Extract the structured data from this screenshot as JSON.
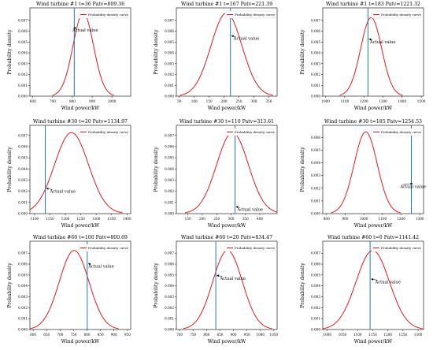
{
  "figure": {
    "colors": {
      "curve": "#e31a1c",
      "actual": "#1f77b4",
      "axis": "#000000"
    }
  },
  "chart_data": [
    {
      "type": "line",
      "title": "Wind turbine #1  t=36 Patv=809.36",
      "xlabel": "Wind power/kW",
      "ylabel": "Probability density",
      "legend": "Probability density curve",
      "legend_position": "top-right",
      "annotation": "Actual value",
      "actual": 809.36,
      "mu": 855,
      "sigma": 52,
      "xlim": [
        585,
        1095
      ],
      "ylim": [
        0,
        0.00815
      ],
      "xticks": [
        600,
        700,
        800,
        900,
        1000
      ],
      "xtick_labels": [
        "600",
        "700",
        "800",
        "900",
        "1000"
      ],
      "yticks": [
        0,
        0.001,
        0.002,
        0.003,
        0.004,
        0.005,
        0.006,
        0.007
      ],
      "ytick_labels": [
        "0.000",
        "0.001",
        "0.002",
        "0.003",
        "0.004",
        "0.005",
        "0.006",
        "0.007"
      ],
      "label_at": 800,
      "label_dy": 0.0012
    },
    {
      "type": "line",
      "title": "Wind turbine #1  t=167 Patv=221.39",
      "xlabel": "Wind power/kW",
      "ylabel": "Probability density",
      "legend": "Probability density curve",
      "legend_position": "top-right",
      "annotation": "Actual value",
      "actual": 221.39,
      "mu": 208,
      "sigma": 52,
      "xlim": [
        40,
        378
      ],
      "ylim": [
        0,
        0.00815
      ],
      "xticks": [
        50,
        100,
        150,
        200,
        250,
        300,
        350
      ],
      "xtick_labels": [
        "50",
        "100",
        "150",
        "200",
        "250",
        "300",
        "350"
      ],
      "yticks": [
        0,
        0.001,
        0.002,
        0.003,
        0.004,
        0.005,
        0.006,
        0.007
      ],
      "ytick_labels": [
        "0.000",
        "0.001",
        "0.002",
        "0.003",
        "0.004",
        "0.005",
        "0.006",
        "0.007"
      ],
      "label_at": 232,
      "label_dy": -0.0018
    },
    {
      "type": "line",
      "title": "Wind turbine #1  t=183 Patv=1221.32",
      "xlabel": "Wind power/kW",
      "ylabel": "Probability density",
      "legend": "Probability density curve",
      "legend_position": "top-right",
      "annotation": "Actual value",
      "actual": 1221.32,
      "mu": 1238,
      "sigma": 55,
      "xlim": [
        985,
        1512
      ],
      "ylim": [
        0,
        0.00815
      ],
      "xticks": [
        1000,
        1100,
        1200,
        1300,
        1400,
        1500
      ],
      "xtick_labels": [
        "1000",
        "1100",
        "1200",
        "1300",
        "1400",
        "1500"
      ],
      "yticks": [
        0,
        0.001,
        0.002,
        0.003,
        0.004,
        0.005,
        0.006,
        0.007
      ],
      "ytick_labels": [
        "0.000",
        "0.001",
        "0.002",
        "0.003",
        "0.004",
        "0.005",
        "0.006",
        "0.007"
      ],
      "label_at": 1232,
      "label_dy": -0.0016
    },
    {
      "type": "line",
      "title": "Wind turbine #30  t=20 Patv=1134.97",
      "xlabel": "Wind power/kW",
      "ylabel": "Probability density",
      "legend": "Probability density curve",
      "legend_position": "top-right",
      "annotation": "Actual value",
      "actual": 1134.97,
      "mu": 1220,
      "sigma": 55,
      "xlim": [
        1085,
        1412
      ],
      "ylim": [
        0,
        0.0079
      ],
      "xticks": [
        1100,
        1150,
        1200,
        1250,
        1300,
        1350,
        1400
      ],
      "xtick_labels": [
        "1100",
        "1150",
        "1200",
        "1250",
        "1300",
        "1350",
        "1400"
      ],
      "yticks": [
        0,
        0.001,
        0.002,
        0.003,
        0.004,
        0.005,
        0.006,
        0.007
      ],
      "ytick_labels": [
        "0.000",
        "0.001",
        "0.002",
        "0.003",
        "0.004",
        "0.005",
        "0.006",
        "0.007"
      ],
      "label_at": 1150,
      "label_dy": 0.0001
    },
    {
      "type": "line",
      "title": "Wind turbine #30  t=110 Patv=313.61",
      "xlabel": "Wind power/kW",
      "ylabel": "Probability density",
      "legend": "Probability density curve",
      "legend_position": "top-right",
      "annotation": "Actual value",
      "actual": 313.61,
      "mu": 305,
      "sigma": 55,
      "xlim": [
        110,
        460
      ],
      "ylim": [
        0,
        0.0079
      ],
      "xticks": [
        150,
        200,
        250,
        300,
        350,
        400
      ],
      "xtick_labels": [
        "150",
        "200",
        "250",
        "300",
        "350",
        "400"
      ],
      "yticks": [
        0,
        0.001,
        0.002,
        0.003,
        0.004,
        0.005,
        0.006,
        0.007
      ],
      "ytick_labels": [
        "0.000",
        "0.001",
        "0.002",
        "0.003",
        "0.004",
        "0.005",
        "0.006",
        "0.007"
      ],
      "label_at": 322,
      "label_dy": -0.0065
    },
    {
      "type": "line",
      "title": "Wind turbine #30  t=185 Patv=1254.53",
      "xlabel": "Wind power/kW",
      "ylabel": "Probability density",
      "legend": "Probability density curve",
      "legend_position": "top-right",
      "annotation": "Actual value",
      "actual": 1254.53,
      "mu": 1010,
      "sigma": 62,
      "xlim": [
        780,
        1320
      ],
      "ylim": [
        0,
        0.00695
      ],
      "xticks": [
        800,
        900,
        1000,
        1100,
        1200,
        1300
      ],
      "xtick_labels": [
        "800",
        "900",
        "1000",
        "1100",
        "1200",
        "1300"
      ],
      "yticks": [
        0,
        0.001,
        0.002,
        0.003,
        0.004,
        0.005,
        0.006
      ],
      "ytick_labels": [
        "0.000",
        "0.001",
        "0.002",
        "0.003",
        "0.004",
        "0.005",
        "0.006"
      ],
      "label_at": 1195,
      "label_dy": 0.0024
    },
    {
      "type": "line",
      "title": "Wind turbine #60  t=100 Patv=800.69",
      "xlabel": "Wind power/kW",
      "ylabel": "Probability density",
      "legend": "Probability density curve",
      "legend_position": "top-right",
      "annotation": "Actual value",
      "actual": 800.69,
      "mu": 752,
      "sigma": 55,
      "xlim": [
        588,
        962
      ],
      "ylim": [
        0,
        0.0081
      ],
      "xticks": [
        600,
        650,
        700,
        750,
        800,
        850,
        900,
        950
      ],
      "xtick_labels": [
        "600",
        "650",
        "700",
        "750",
        "800",
        "850",
        "900",
        "950"
      ],
      "yticks": [
        0,
        0.001,
        0.002,
        0.003,
        0.004,
        0.005,
        0.006,
        0.007
      ],
      "ytick_labels": [
        "0.000",
        "0.001",
        "0.002",
        "0.003",
        "0.004",
        "0.005",
        "0.006",
        "0.007"
      ],
      "label_at": 805,
      "label_dy": 0.0012
    },
    {
      "type": "line",
      "title": "Wind turbine #60  t=20 Patv=834.47",
      "xlabel": "Wind power/kW",
      "ylabel": "Probability density",
      "legend": "Probability density curve",
      "legend_position": "top-right",
      "annotation": "Actual value",
      "actual": 834.47,
      "mu": 878,
      "sigma": 55,
      "xlim": [
        688,
        1062
      ],
      "ylim": [
        0,
        0.0081
      ],
      "xticks": [
        700,
        750,
        800,
        850,
        900,
        950,
        1000,
        1050
      ],
      "xtick_labels": [
        "700",
        "750",
        "800",
        "850",
        "900",
        "950",
        "1000",
        "1050"
      ],
      "yticks": [
        0,
        0.001,
        0.002,
        0.003,
        0.004,
        0.005,
        0.006,
        0.007
      ],
      "ytick_labels": [
        "0.000",
        "0.001",
        "0.002",
        "0.003",
        "0.004",
        "0.005",
        "0.006",
        "0.007"
      ],
      "label_at": 850,
      "label_dy": -0.0003
    },
    {
      "type": "line",
      "title": "Wind turbine #60  t=0 Patv=1141.42",
      "xlabel": "Wind power/kW",
      "ylabel": "Probability density",
      "legend": "Probability density curve",
      "legend_position": "top-right",
      "annotation": "Actual value",
      "actual": 1141.42,
      "mu": 1150,
      "sigma": 55,
      "xlim": [
        985,
        1318
      ],
      "ylim": [
        0,
        0.0081
      ],
      "xticks": [
        1000,
        1050,
        1100,
        1150,
        1200,
        1250,
        1300
      ],
      "xtick_labels": [
        "1000",
        "1050",
        "1100",
        "1150",
        "1200",
        "1250",
        "1300"
      ],
      "yticks": [
        0,
        0.001,
        0.002,
        0.003,
        0.004,
        0.005,
        0.006,
        0.007
      ],
      "ytick_labels": [
        "0.000",
        "0.001",
        "0.002",
        "0.003",
        "0.004",
        "0.005",
        "0.006",
        "0.007"
      ],
      "label_at": 1158,
      "label_dy": -0.0025
    }
  ]
}
